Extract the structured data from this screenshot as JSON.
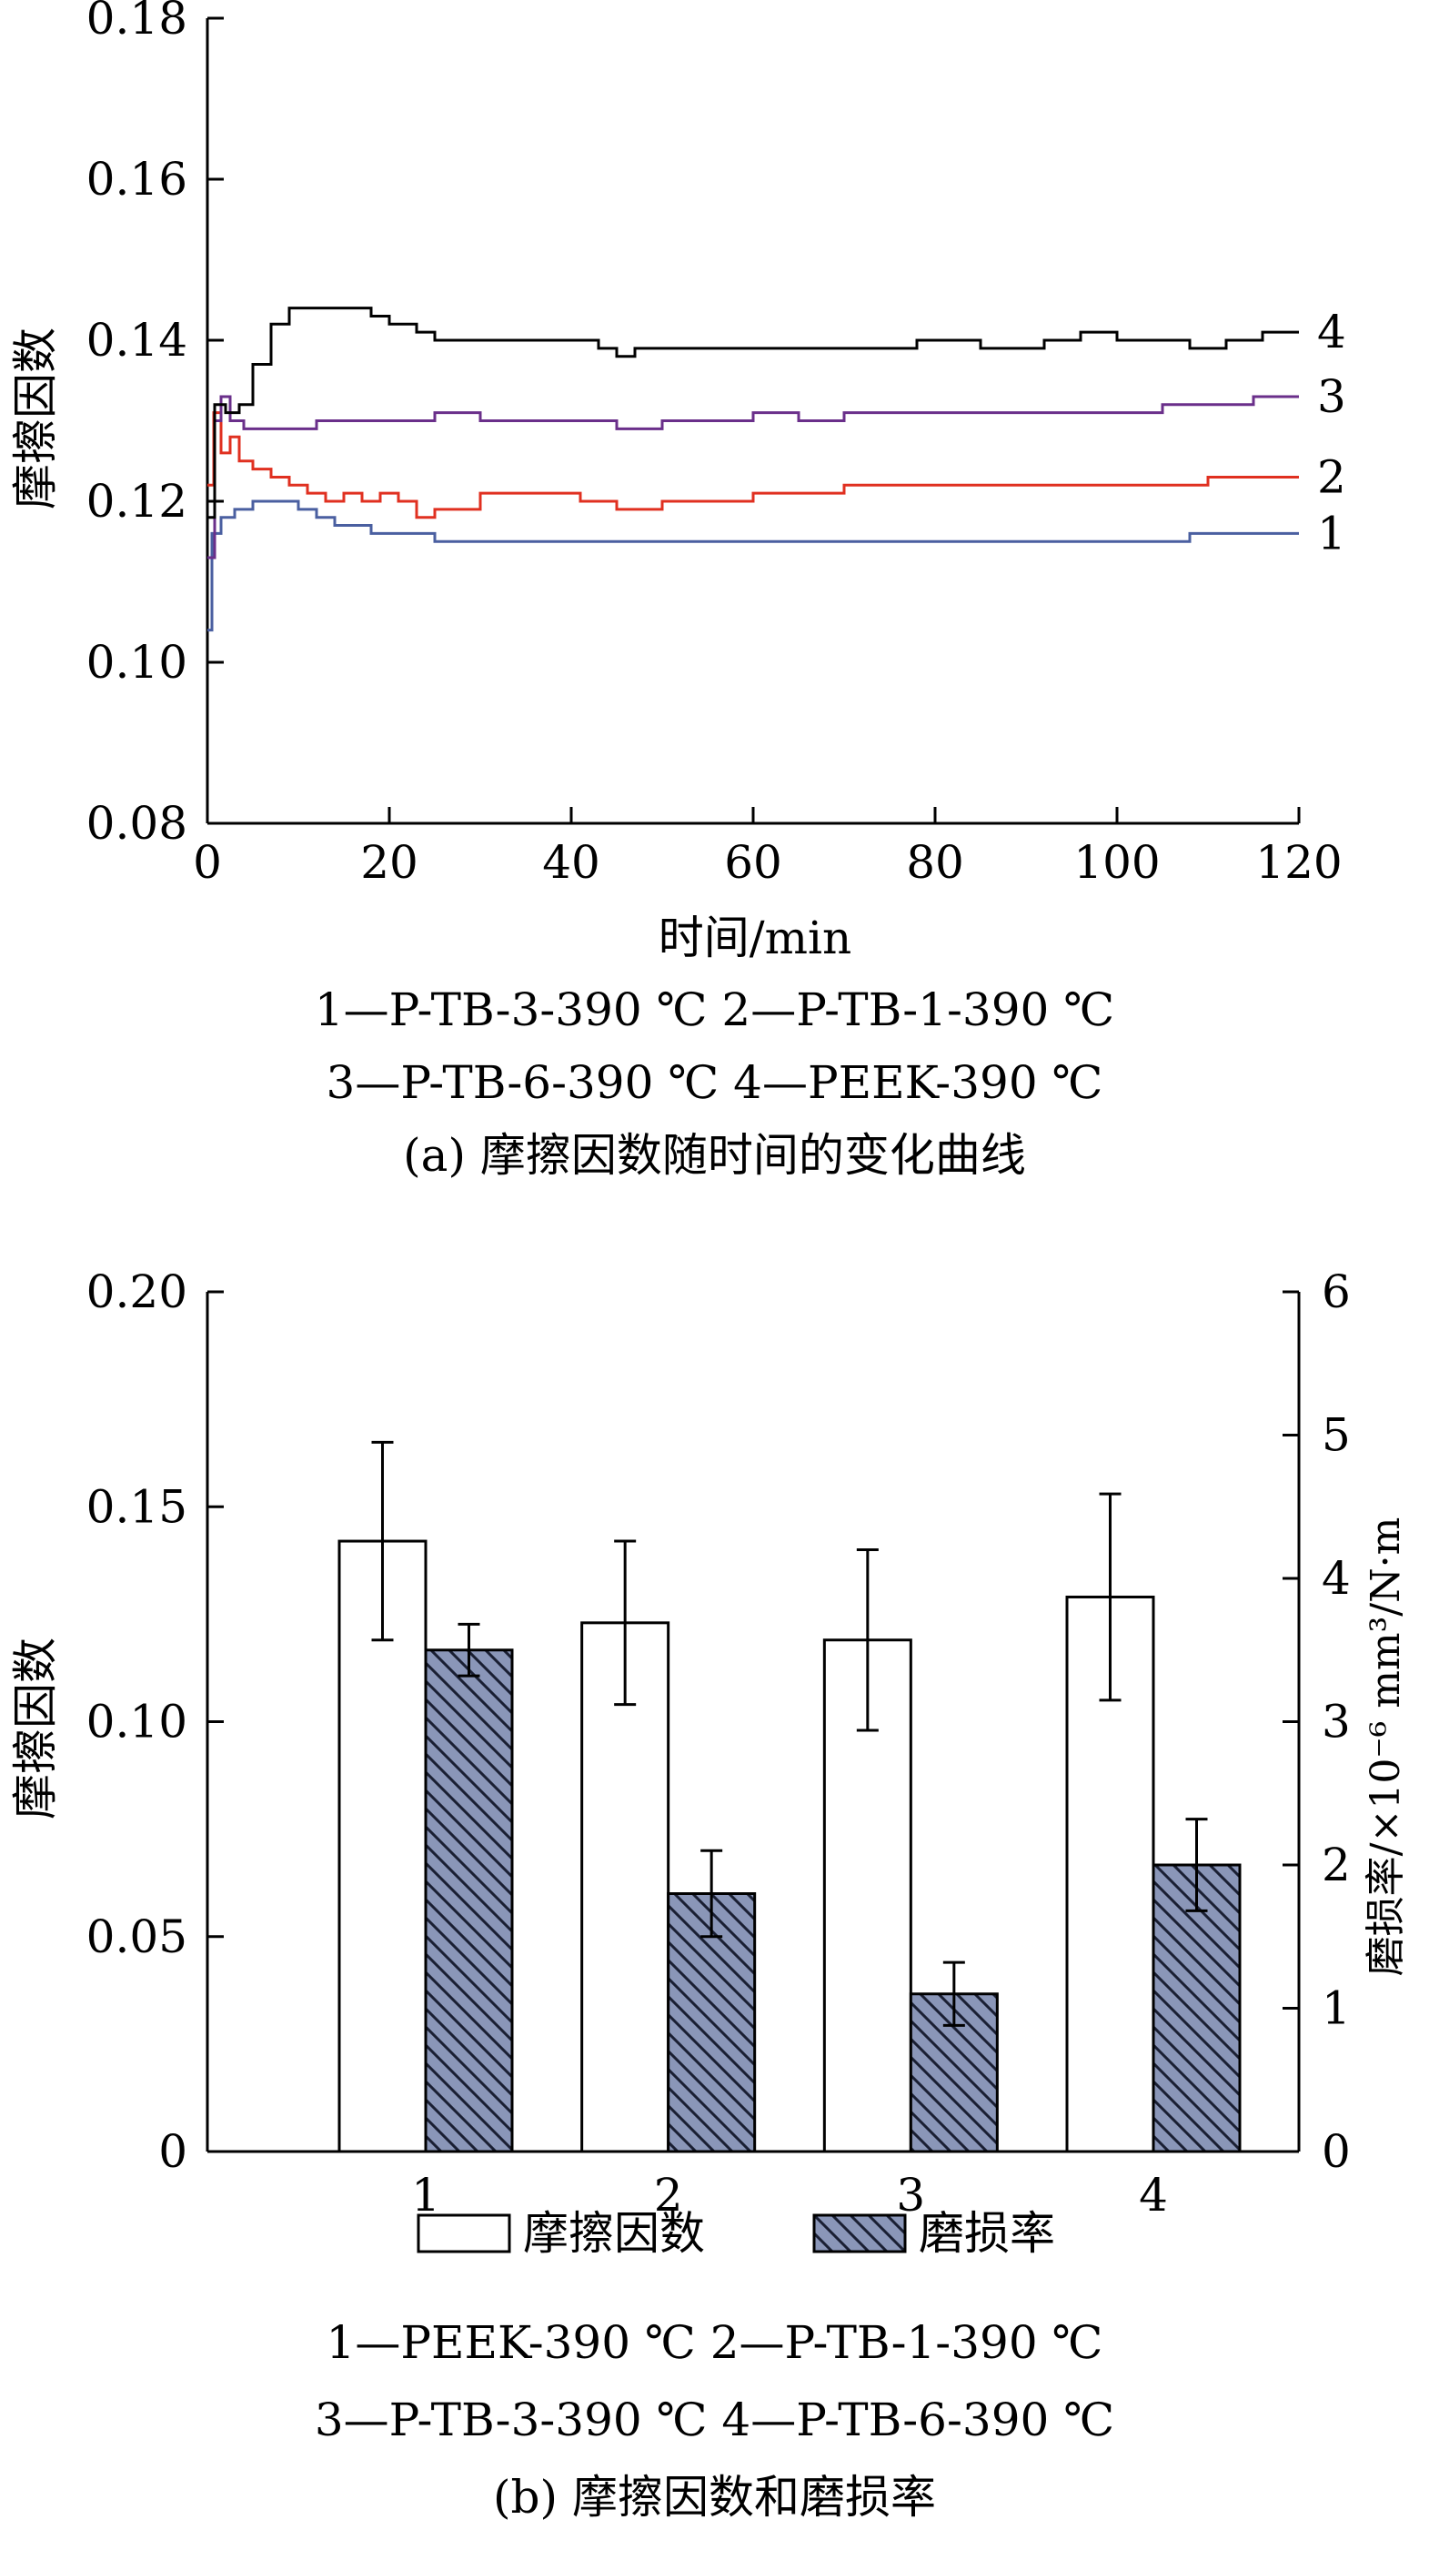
{
  "chart_data": [
    {
      "type": "line",
      "ylabel": "摩擦因数",
      "xlabel": "时间/min",
      "xlim": [
        0,
        120
      ],
      "ylim": [
        0.08,
        0.18
      ],
      "xticks": [
        "0",
        "20",
        "40",
        "60",
        "80",
        "100",
        "120"
      ],
      "yticks": [
        "0.08",
        "0.10",
        "0.12",
        "0.14",
        "0.16",
        "0.18"
      ],
      "grid": false,
      "series": [
        {
          "name": "1",
          "color": "#4a5fa0",
          "points": [
            [
              0,
              0.104
            ],
            [
              0.5,
              0.116
            ],
            [
              1.5,
              0.118
            ],
            [
              3,
              0.119
            ],
            [
              5,
              0.12
            ],
            [
              8,
              0.12
            ],
            [
              10,
              0.119
            ],
            [
              12,
              0.118
            ],
            [
              14,
              0.117
            ],
            [
              16,
              0.117
            ],
            [
              18,
              0.116
            ],
            [
              22,
              0.116
            ],
            [
              25,
              0.115
            ],
            [
              30,
              0.115
            ],
            [
              40,
              0.115
            ],
            [
              50,
              0.115
            ],
            [
              60,
              0.115
            ],
            [
              70,
              0.115
            ],
            [
              80,
              0.115
            ],
            [
              90,
              0.115
            ],
            [
              100,
              0.115
            ],
            [
              108,
              0.116
            ],
            [
              112,
              0.116
            ],
            [
              116,
              0.116
            ],
            [
              120,
              0.116
            ]
          ]
        },
        {
          "name": "2",
          "color": "#e03020",
          "points": [
            [
              0,
              0.122
            ],
            [
              0.7,
              0.131
            ],
            [
              1.5,
              0.126
            ],
            [
              2.5,
              0.128
            ],
            [
              3.5,
              0.125
            ],
            [
              5,
              0.124
            ],
            [
              7,
              0.123
            ],
            [
              9,
              0.122
            ],
            [
              11,
              0.121
            ],
            [
              13,
              0.12
            ],
            [
              15,
              0.121
            ],
            [
              17,
              0.12
            ],
            [
              19,
              0.121
            ],
            [
              21,
              0.12
            ],
            [
              23,
              0.118
            ],
            [
              25,
              0.119
            ],
            [
              28,
              0.119
            ],
            [
              30,
              0.121
            ],
            [
              33,
              0.121
            ],
            [
              36,
              0.121
            ],
            [
              39,
              0.121
            ],
            [
              41,
              0.12
            ],
            [
              43,
              0.12
            ],
            [
              45,
              0.119
            ],
            [
              50,
              0.12
            ],
            [
              55,
              0.12
            ],
            [
              60,
              0.121
            ],
            [
              65,
              0.121
            ],
            [
              70,
              0.122
            ],
            [
              75,
              0.122
            ],
            [
              80,
              0.122
            ],
            [
              90,
              0.122
            ],
            [
              100,
              0.122
            ],
            [
              110,
              0.123
            ],
            [
              115,
              0.123
            ],
            [
              120,
              0.123
            ]
          ]
        },
        {
          "name": "3",
          "color": "#6a2f8a",
          "points": [
            [
              0,
              0.113
            ],
            [
              0.8,
              0.13
            ],
            [
              1.5,
              0.133
            ],
            [
              2.5,
              0.13
            ],
            [
              4,
              0.129
            ],
            [
              6,
              0.129
            ],
            [
              8,
              0.129
            ],
            [
              12,
              0.13
            ],
            [
              16,
              0.13
            ],
            [
              20,
              0.13
            ],
            [
              25,
              0.131
            ],
            [
              30,
              0.13
            ],
            [
              35,
              0.13
            ],
            [
              40,
              0.13
            ],
            [
              45,
              0.129
            ],
            [
              50,
              0.13
            ],
            [
              55,
              0.13
            ],
            [
              60,
              0.131
            ],
            [
              65,
              0.13
            ],
            [
              70,
              0.131
            ],
            [
              75,
              0.131
            ],
            [
              80,
              0.131
            ],
            [
              85,
              0.131
            ],
            [
              90,
              0.131
            ],
            [
              95,
              0.131
            ],
            [
              100,
              0.131
            ],
            [
              105,
              0.132
            ],
            [
              110,
              0.132
            ],
            [
              115,
              0.133
            ],
            [
              120,
              0.133
            ]
          ]
        },
        {
          "name": "4",
          "color": "#000000",
          "points": [
            [
              0,
              0.118
            ],
            [
              0.8,
              0.132
            ],
            [
              2,
              0.131
            ],
            [
              3.5,
              0.132
            ],
            [
              5,
              0.137
            ],
            [
              7,
              0.142
            ],
            [
              9,
              0.144
            ],
            [
              12,
              0.144
            ],
            [
              15,
              0.144
            ],
            [
              18,
              0.143
            ],
            [
              20,
              0.142
            ],
            [
              23,
              0.141
            ],
            [
              25,
              0.14
            ],
            [
              30,
              0.14
            ],
            [
              35,
              0.14
            ],
            [
              40,
              0.14
            ],
            [
              43,
              0.139
            ],
            [
              45,
              0.138
            ],
            [
              47,
              0.139
            ],
            [
              50,
              0.139
            ],
            [
              55,
              0.139
            ],
            [
              60,
              0.139
            ],
            [
              65,
              0.139
            ],
            [
              70,
              0.139
            ],
            [
              75,
              0.139
            ],
            [
              78,
              0.14
            ],
            [
              82,
              0.14
            ],
            [
              85,
              0.139
            ],
            [
              88,
              0.139
            ],
            [
              92,
              0.14
            ],
            [
              96,
              0.141
            ],
            [
              100,
              0.14
            ],
            [
              104,
              0.14
            ],
            [
              108,
              0.139
            ],
            [
              112,
              0.14
            ],
            [
              116,
              0.141
            ],
            [
              120,
              0.141
            ]
          ]
        }
      ],
      "legend_lines": [
        "1—P-TB-3-390 ℃    2—P-TB-1-390 ℃",
        "3—P-TB-6-390 ℃    4—PEEK-390 ℃"
      ],
      "caption": "(a) 摩擦因数随时间的变化曲线"
    },
    {
      "type": "bar",
      "categories": [
        "1",
        "2",
        "3",
        "4"
      ],
      "ylabel": "摩擦因数",
      "ylabel_right": "磨损率/×10⁻⁶ mm³/N·m",
      "ylim": [
        0,
        0.2
      ],
      "ylim_right": [
        0,
        6
      ],
      "yticks": [
        "0",
        "0.05",
        "0.10",
        "0.15",
        "0.20"
      ],
      "yticks_right": [
        "0",
        "1",
        "2",
        "3",
        "4",
        "5",
        "6"
      ],
      "series": [
        {
          "name": "摩擦因数",
          "axis": "left",
          "color": "#ffffff",
          "values": [
            0.142,
            0.123,
            0.119,
            0.129
          ],
          "errors": [
            0.023,
            0.019,
            0.021,
            0.024
          ]
        },
        {
          "name": "磨损率",
          "axis": "right",
          "color": "#8a96b8",
          "pattern": "hatch",
          "values": [
            3.5,
            1.8,
            1.1,
            2.0
          ],
          "errors": [
            0.18,
            0.3,
            0.22,
            0.32
          ]
        }
      ],
      "legend_position": "bottom",
      "legend_lines": [
        "1—PEEK-390 ℃    2—P-TB-1-390 ℃",
        "3—P-TB-3-390 ℃    4—P-TB-6-390 ℃"
      ],
      "caption": "(b) 摩擦因数和磨损率"
    }
  ]
}
